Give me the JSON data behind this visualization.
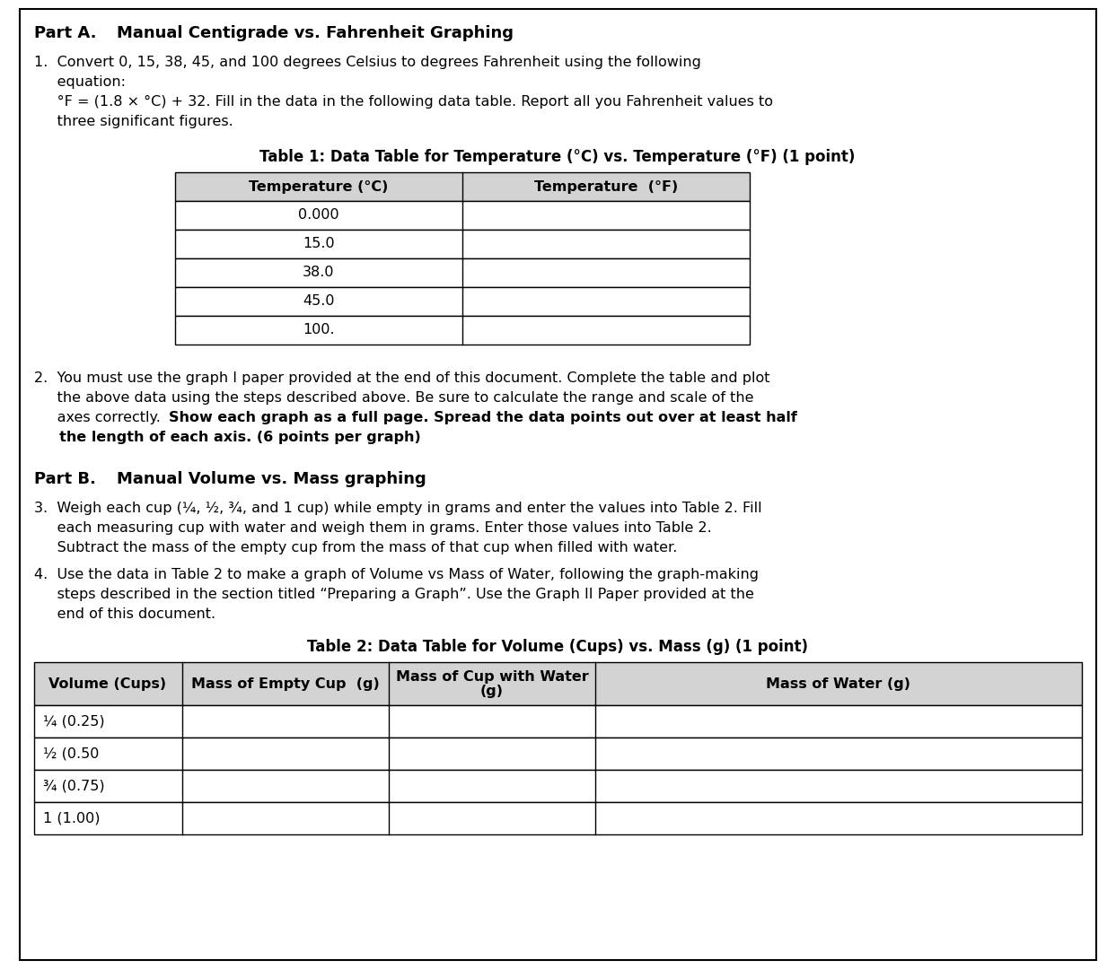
{
  "bg_color": "#ffffff",
  "border_color": "#000000",
  "text_color": "#000000",
  "part_a_label": "Part A.",
  "part_a_title": "Manual Centigrade vs. Fahrenheit Graphing",
  "item1_line1": "1.  Convert 0, 15, 38, 45, and 100 degrees Celsius to degrees Fahrenheit using the following",
  "item1_line2": "     equation:",
  "item1_line3": "     °F = (1.8 × °C) + 32. Fill in the data in the following data table. Report all you Fahrenheit values to",
  "item1_line4": "     three significant figures.",
  "table1_title": "Table 1: Data Table for Temperature (°C) vs. Temperature (°F) (1 point)",
  "table1_col1_header": "Temperature (°C)",
  "table1_col2_header": "Temperature  (°F)",
  "table1_col1_data": [
    "0.000",
    "15.0",
    "38.0",
    "45.0",
    "100."
  ],
  "item2_line1": "2.  You must use the graph I paper provided at the end of this document. Complete the table and plot",
  "item2_line2": "     the above data using the steps described above. Be sure to calculate the range and scale of the",
  "item2_line3_norm": "     axes correctly. ",
  "item2_line3_bold": "Show each graph as a full page. Spread the data points out over at least half",
  "item2_line4_bold": "     the length of each axis. (6 points per graph)",
  "part_b_label": "Part B.",
  "part_b_title": "Manual Volume vs. Mass graphing",
  "item3_line1": "3.  Weigh each cup (¼, ½, ¾, and 1 cup) while empty in grams and enter the values into Table 2. Fill",
  "item3_line2": "     each measuring cup with water and weigh them in grams. Enter those values into Table 2.",
  "item3_line3": "     Subtract the mass of the empty cup from the mass of that cup when filled with water.",
  "item4_line1": "4.  Use the data in Table 2 to make a graph of Volume vs Mass of Water, following the graph-making",
  "item4_line2": "     steps described in the section titled “Preparing a Graph”. Use the Graph II Paper provided at the",
  "item4_line3": "     end of this document.",
  "table2_title": "Table 2: Data Table for Volume (Cups) vs. Mass (g) (1 point)",
  "table2_col1_header": "Volume (Cups)",
  "table2_col2_header": "Mass of Empty Cup  (g)",
  "table2_col3_header_line1": "Mass of Cup with Water",
  "table2_col3_header_line2": "(g)",
  "table2_col4_header": "Mass of Water (g)",
  "table2_col1_data": [
    "¼ (0.25)",
    "½ (0.50",
    "¾ (0.75)",
    "1 (1.00)"
  ],
  "font_size": 11.5,
  "font_size_bold_header": 12.5,
  "font_size_table": 11.5,
  "font_size_table_title": 12.0
}
